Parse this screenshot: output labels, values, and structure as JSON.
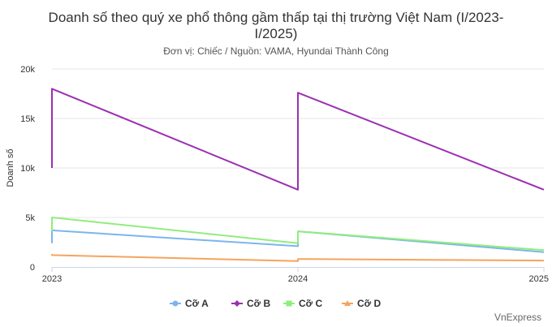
{
  "chart_data": {
    "type": "line",
    "title": "Doanh số theo quý xe phổ thông gầm thấp tại thị trường Việt Nam (I/2023-I/2025)",
    "subtitle": "Đơn vị: Chiếc / Nguồn: VAMA, Hyundai Thành Công",
    "ylabel": "Doanh số",
    "xlabel": "",
    "x_ticks": [
      "2023",
      "2024",
      "2025"
    ],
    "y_ticks": [
      "0",
      "5k",
      "10k",
      "15k",
      "20k"
    ],
    "ylim": [
      0,
      20000
    ],
    "xlim": [
      2023,
      2025
    ],
    "grid": true,
    "legend": "bottom",
    "series": [
      {
        "name": "Cỡ A",
        "color": "#7cb5ec",
        "points": [
          [
            2023,
            2400
          ],
          [
            2023,
            3700
          ],
          [
            2024,
            2100
          ],
          [
            2024,
            3600
          ],
          [
            2025,
            1500
          ]
        ]
      },
      {
        "name": "Cỡ B",
        "color": "#9b30b0",
        "points": [
          [
            2023,
            10000
          ],
          [
            2023,
            18000
          ],
          [
            2024,
            7800
          ],
          [
            2024,
            17600
          ],
          [
            2025,
            7800
          ]
        ]
      },
      {
        "name": "Cỡ C",
        "color": "#90ed7d",
        "points": [
          [
            2023,
            3600
          ],
          [
            2023,
            5000
          ],
          [
            2024,
            2400
          ],
          [
            2024,
            3600
          ],
          [
            2025,
            1700
          ]
        ]
      },
      {
        "name": "Cỡ D",
        "color": "#f7a35c",
        "points": [
          [
            2023,
            1300
          ],
          [
            2023,
            1200
          ],
          [
            2024,
            600
          ],
          [
            2024,
            800
          ],
          [
            2025,
            650
          ]
        ]
      }
    ],
    "credit": "VnExpress"
  }
}
